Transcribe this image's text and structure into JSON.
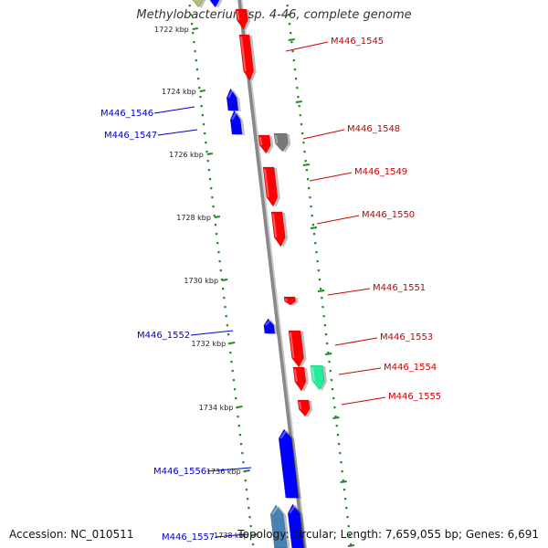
{
  "title": "Methylobacterium sp. 4-46, complete genome",
  "footer": {
    "accession": "Accession: NC_010511",
    "summary": "Topology: circular; Length: 7,659,055 bp; Genes: 6,691"
  },
  "colors": {
    "forward_gene": "#ff0000",
    "reverse_gene": "#0000ff",
    "backbone": "#888888",
    "tick": "#228822",
    "forward_label": "#cc0000",
    "reverse_label": "#0000cc",
    "grey_gene": "#777777",
    "teal_gene": "#22ee99",
    "steelblue_gene": "#4682b4",
    "olive_gene": "#bbbb77"
  },
  "ticks": [
    {
      "label": "1722 kbp"
    },
    {
      "label": "1724 kbp"
    },
    {
      "label": "1726 kbp"
    },
    {
      "label": "1728 kbp"
    },
    {
      "label": "1730 kbp"
    },
    {
      "label": "1732 kbp"
    },
    {
      "label": "1734 kbp"
    },
    {
      "label": "1736 kbp"
    },
    {
      "label": "1738 kbp"
    }
  ],
  "genes": [
    {
      "name": "M446_1545",
      "strand": "+"
    },
    {
      "name": "M446_1546",
      "strand": "-"
    },
    {
      "name": "M446_1547",
      "strand": "-"
    },
    {
      "name": "M446_1548",
      "strand": "+"
    },
    {
      "name": "M446_1549",
      "strand": "+"
    },
    {
      "name": "M446_1550",
      "strand": "+"
    },
    {
      "name": "M446_1551",
      "strand": "+"
    },
    {
      "name": "M446_1552",
      "strand": "-"
    },
    {
      "name": "M446_1553",
      "strand": "+"
    },
    {
      "name": "M446_1554",
      "strand": "+"
    },
    {
      "name": "M446_1555",
      "strand": "+"
    },
    {
      "name": "M446_1556",
      "strand": "-"
    },
    {
      "name": "M446_1557",
      "strand": "-"
    }
  ]
}
